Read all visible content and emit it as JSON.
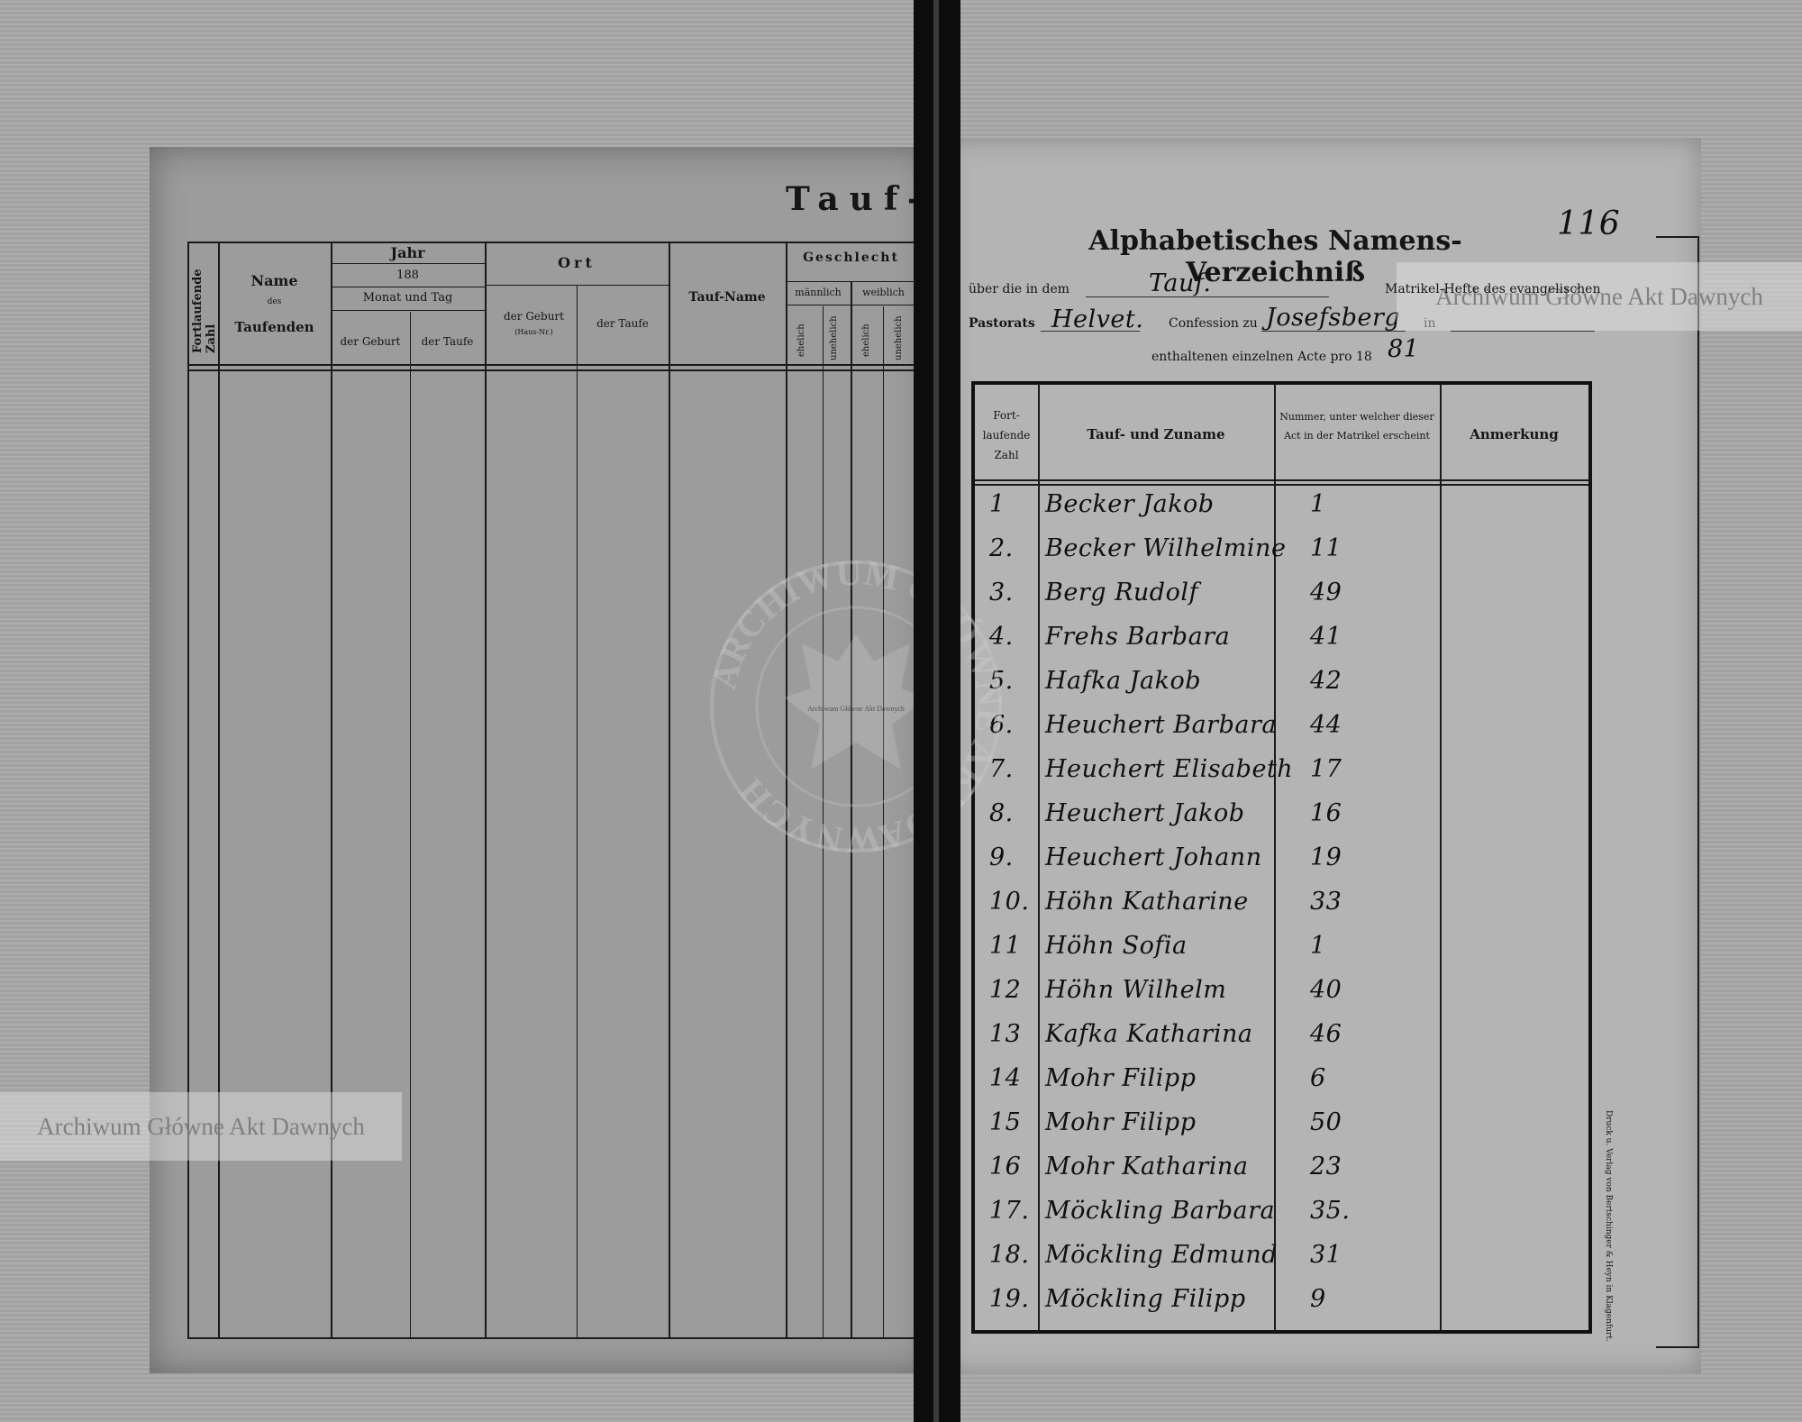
{
  "left_page": {
    "heading": "Tauf-",
    "columns": {
      "fortlaufende": "Fortlaufende Zahl",
      "name": "Name",
      "name_des": "des",
      "name_taufenden": "Taufenden",
      "jahr": "Jahr",
      "jahr_year": "188",
      "monat_tag": "Monat und Tag",
      "der_geburt": "der Geburt",
      "der_taufe": "der Taufe",
      "ort": "Ort",
      "ort_geburt": "der Geburt",
      "ort_haus": "(Haus-Nr.)",
      "ort_taufe": "der Taufe",
      "tauf_name": "Tauf-Name",
      "geschlecht": "Geschlecht",
      "maennlich": "männlich",
      "weiblich": "weiblich",
      "ehelich": "ehelich",
      "unehelich": "unehelich"
    }
  },
  "right_page": {
    "page_number": "116",
    "title": "Alphabetisches Namens-Verzeichniß",
    "line1": {
      "prefix": "über die in dem",
      "value": "Tauf.",
      "suffix": "Matrikel-Hefte des evangelischen"
    },
    "line2": {
      "prefix": "Pastorats",
      "value1": "Helvet.",
      "middle": "Confession zu",
      "value2": "Josefsberg",
      "suffix": "in"
    },
    "line3": {
      "prefix": "enthaltenen einzelnen Acte pro 18",
      "year": "81"
    },
    "columns": {
      "zahl": "Fort- laufende Zahl",
      "name": "Tauf- und Zuname",
      "nummer": "Nummer, unter welcher dieser Act in der Matrikel erscheint",
      "anmerkung": "Anmerkung"
    },
    "entries": [
      {
        "n": "1",
        "name": "Becker Jakob",
        "act": "1"
      },
      {
        "n": "2.",
        "name": "Becker Wilhelmine",
        "act": "11"
      },
      {
        "n": "3.",
        "name": "Berg Rudolf",
        "act": "49"
      },
      {
        "n": "4.",
        "name": "Frehs Barbara",
        "act": "41"
      },
      {
        "n": "5.",
        "name": "Hafka Jakob",
        "act": "42"
      },
      {
        "n": "6.",
        "name": "Heuchert Barbara",
        "act": "44"
      },
      {
        "n": "7.",
        "name": "Heuchert Elisabeth",
        "act": "17"
      },
      {
        "n": "8.",
        "name": "Heuchert Jakob",
        "act": "16"
      },
      {
        "n": "9.",
        "name": "Heuchert Johann",
        "act": "19"
      },
      {
        "n": "10.",
        "name": "Höhn Katharine",
        "act": "33"
      },
      {
        "n": "11",
        "name": "Höhn Sofia",
        "act": "1"
      },
      {
        "n": "12",
        "name": "Höhn Wilhelm",
        "act": "40"
      },
      {
        "n": "13",
        "name": "Kafka Katharina",
        "act": "46"
      },
      {
        "n": "14",
        "name": "Mohr Filipp",
        "act": "6"
      },
      {
        "n": "15",
        "name": "Mohr Filipp",
        "act": "50"
      },
      {
        "n": "16",
        "name": "Mohr Katharina",
        "act": "23"
      },
      {
        "n": "17.",
        "name": "Möckling Barbara",
        "act": "35."
      },
      {
        "n": "18.",
        "name": "Möckling Edmund",
        "act": "31"
      },
      {
        "n": "19.",
        "name": "Möckling Filipp",
        "act": "9"
      }
    ],
    "printer": "Druck u. Verlag von Bertschinger & Heyn in Klagenfurt."
  },
  "watermarks": {
    "banner": "Archiwum Główne Akt Dawnych",
    "stamp_ring": "ARCHIWUM GŁÓWNE AKT DAWNYCH",
    "stamp_center": "Archiwum Główne Akt Dawnych"
  }
}
